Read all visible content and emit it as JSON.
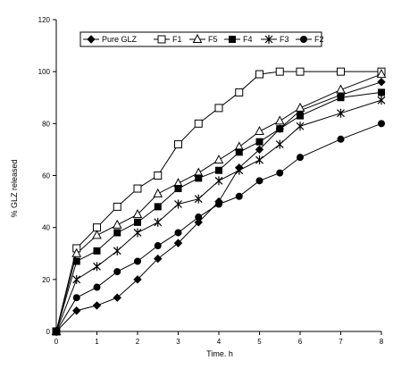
{
  "chart_data": {
    "type": "line",
    "title": "",
    "xlabel": "Time. h",
    "ylabel": "% GLZ released",
    "xlim": [
      0,
      8
    ],
    "ylim": [
      0,
      120
    ],
    "xticks": [
      0,
      1,
      2,
      3,
      4,
      5,
      6,
      7,
      8
    ],
    "yticks": [
      0,
      20,
      40,
      60,
      80,
      100,
      120
    ],
    "grid": false,
    "legend_position": "top-center",
    "series": [
      {
        "name": "Pure GLZ",
        "marker": "diamond-filled",
        "x": [
          0,
          0.5,
          1,
          1.5,
          2,
          2.5,
          3,
          3.5,
          4,
          4.5,
          5,
          5.5,
          6,
          7,
          8
        ],
        "values": [
          0,
          8,
          10,
          13,
          20,
          28,
          34,
          42,
          50,
          63,
          70,
          78,
          85,
          91,
          96
        ]
      },
      {
        "name": "F1",
        "marker": "square-open",
        "x": [
          0,
          0.5,
          1,
          1.5,
          2,
          2.5,
          3,
          3.5,
          4,
          4.5,
          5,
          5.5,
          6,
          7,
          8
        ],
        "values": [
          0,
          32,
          40,
          48,
          55,
          60,
          72,
          80,
          86,
          92,
          99,
          100,
          100,
          100,
          100
        ]
      },
      {
        "name": "F5",
        "marker": "triangle-open",
        "x": [
          0,
          0.5,
          1,
          1.5,
          2,
          2.5,
          3,
          3.5,
          4,
          4.5,
          5,
          5.5,
          6,
          7,
          8
        ],
        "values": [
          0,
          30,
          37,
          41,
          45,
          53,
          57,
          61,
          66,
          71,
          77,
          81,
          86,
          93,
          99
        ]
      },
      {
        "name": "F4",
        "marker": "square-filled",
        "x": [
          0,
          0.5,
          1,
          1.5,
          2,
          2.5,
          3,
          3.5,
          4,
          4.5,
          5,
          5.5,
          6,
          7,
          8
        ],
        "values": [
          0,
          27,
          31,
          38,
          42,
          48,
          55,
          59,
          62,
          69,
          73,
          78,
          83,
          90,
          92
        ]
      },
      {
        "name": "F3",
        "marker": "asterisk",
        "x": [
          0,
          0.5,
          1,
          1.5,
          2,
          2.5,
          3,
          3.5,
          4,
          4.5,
          5,
          5.5,
          6,
          7,
          8
        ],
        "values": [
          0,
          20,
          25,
          31,
          38,
          42,
          49,
          51,
          58,
          62,
          66,
          72,
          79,
          84,
          89
        ]
      },
      {
        "name": "F2",
        "marker": "circle-filled",
        "x": [
          0,
          0.5,
          1,
          1.5,
          2,
          2.5,
          3,
          3.5,
          4,
          4.5,
          5,
          5.5,
          6,
          7,
          8
        ],
        "values": [
          0,
          13,
          17,
          23,
          27,
          33,
          38,
          44,
          49,
          52,
          58,
          61,
          67,
          74,
          80
        ]
      }
    ]
  }
}
